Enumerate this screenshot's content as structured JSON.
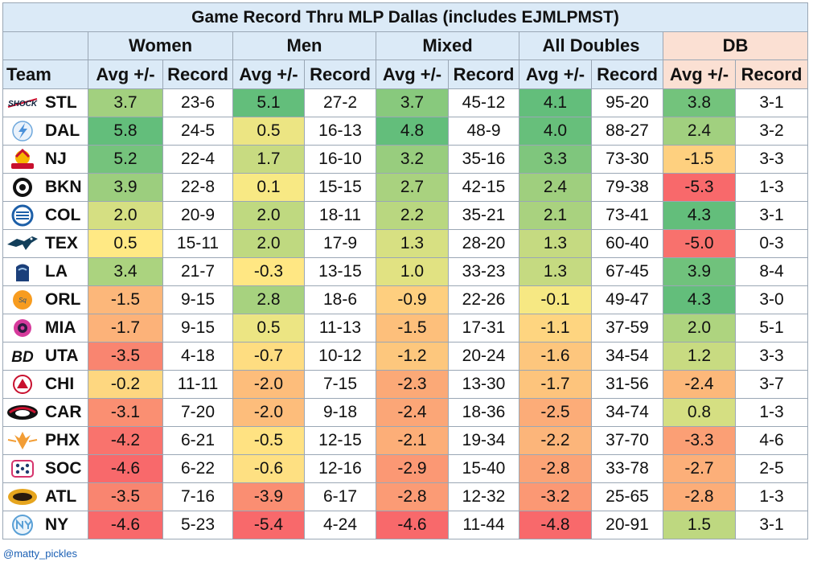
{
  "title": "Game Record Thru MLP Dallas (includes EJMLPMST)",
  "groups": [
    "Women",
    "Men",
    "Mixed",
    "All Doubles",
    "DB"
  ],
  "subheaders": {
    "team": "Team",
    "avg": "Avg +/-",
    "record": "Record"
  },
  "credit": "@matty_pickles",
  "colors": {
    "green": "#63be7b",
    "yellow": "#ffeb84",
    "red": "#f8696b",
    "header": "#dbeaf7",
    "db_header": "#fbe0d3"
  },
  "chart_data": {
    "type": "table",
    "columns": [
      "Team",
      "Women Avg +/-",
      "Women Record",
      "Men Avg +/-",
      "Men Record",
      "Mixed Avg +/-",
      "Mixed Record",
      "All Doubles Avg +/-",
      "All Doubles Record",
      "DB Avg +/-",
      "DB Record"
    ],
    "rows": [
      {
        "team": "STL",
        "logo": "shock-logo",
        "logo_text": "SHOCK",
        "values": [
          "3.7",
          "23-6",
          "5.1",
          "27-2",
          "3.7",
          "45-12",
          "4.1",
          "95-20",
          "3.8",
          "3-1"
        ]
      },
      {
        "team": "DAL",
        "logo": "dallas-flash-logo",
        "values": [
          "5.8",
          "24-5",
          "0.5",
          "16-13",
          "4.8",
          "48-9",
          "4.0",
          "88-27",
          "2.4",
          "3-2"
        ]
      },
      {
        "team": "NJ",
        "logo": "nj-5s-logo",
        "values": [
          "5.2",
          "22-4",
          "1.7",
          "16-10",
          "3.2",
          "35-16",
          "3.3",
          "73-30",
          "-1.5",
          "3-3"
        ]
      },
      {
        "team": "BKN",
        "logo": "brooklyn-logo",
        "values": [
          "3.9",
          "22-8",
          "0.1",
          "15-15",
          "2.7",
          "42-15",
          "2.4",
          "79-38",
          "-5.3",
          "1-3"
        ]
      },
      {
        "team": "COL",
        "logo": "columbus-logo",
        "values": [
          "2.0",
          "20-9",
          "2.0",
          "18-11",
          "2.2",
          "35-21",
          "2.1",
          "73-41",
          "4.3",
          "3-1"
        ]
      },
      {
        "team": "TEX",
        "logo": "texas-logo",
        "values": [
          "0.5",
          "15-11",
          "2.0",
          "17-9",
          "1.3",
          "28-20",
          "1.3",
          "60-40",
          "-5.0",
          "0-3"
        ]
      },
      {
        "team": "LA",
        "logo": "la-mad-drops-logo",
        "values": [
          "3.4",
          "21-7",
          "-0.3",
          "13-15",
          "1.0",
          "33-23",
          "1.3",
          "67-45",
          "3.9",
          "8-4"
        ]
      },
      {
        "team": "ORL",
        "logo": "orlando-squeeze-logo",
        "values": [
          "-1.5",
          "9-15",
          "2.8",
          "18-6",
          "-0.9",
          "22-26",
          "-0.1",
          "49-47",
          "4.3",
          "3-0"
        ]
      },
      {
        "team": "MIA",
        "logo": "miami-logo",
        "values": [
          "-1.7",
          "9-15",
          "0.5",
          "11-13",
          "-1.5",
          "17-31",
          "-1.1",
          "37-59",
          "2.0",
          "5-1"
        ]
      },
      {
        "team": "UTA",
        "logo": "utah-black-diamonds-logo",
        "logo_text": "BD",
        "values": [
          "-3.5",
          "4-18",
          "-0.7",
          "10-12",
          "-1.2",
          "20-24",
          "-1.6",
          "34-54",
          "1.2",
          "3-3"
        ]
      },
      {
        "team": "CHI",
        "logo": "chicago-logo",
        "values": [
          "-0.2",
          "11-11",
          "-2.0",
          "7-15",
          "-2.3",
          "13-30",
          "-1.7",
          "31-56",
          "-2.4",
          "3-7"
        ]
      },
      {
        "team": "CAR",
        "logo": "carolina-logo",
        "values": [
          "-3.1",
          "7-20",
          "-2.0",
          "9-18",
          "-2.4",
          "18-36",
          "-2.5",
          "34-74",
          "0.8",
          "1-3"
        ]
      },
      {
        "team": "PHX",
        "logo": "phoenix-logo",
        "values": [
          "-4.2",
          "6-21",
          "-0.5",
          "12-15",
          "-2.1",
          "19-34",
          "-2.2",
          "37-70",
          "-3.3",
          "4-6"
        ]
      },
      {
        "team": "SOC",
        "logo": "socal-logo",
        "values": [
          "-4.6",
          "6-22",
          "-0.6",
          "12-16",
          "-2.9",
          "15-40",
          "-2.8",
          "33-78",
          "-2.7",
          "2-5"
        ]
      },
      {
        "team": "ATL",
        "logo": "atlanta-bouncers-logo",
        "values": [
          "-3.5",
          "7-16",
          "-3.9",
          "6-17",
          "-2.8",
          "12-32",
          "-3.2",
          "25-65",
          "-2.8",
          "1-3"
        ]
      },
      {
        "team": "NY",
        "logo": "ny-hustlers-logo",
        "values": [
          "-4.6",
          "5-23",
          "-5.4",
          "4-24",
          "-4.6",
          "11-44",
          "-4.8",
          "20-91",
          "1.5",
          "3-1"
        ]
      }
    ]
  }
}
